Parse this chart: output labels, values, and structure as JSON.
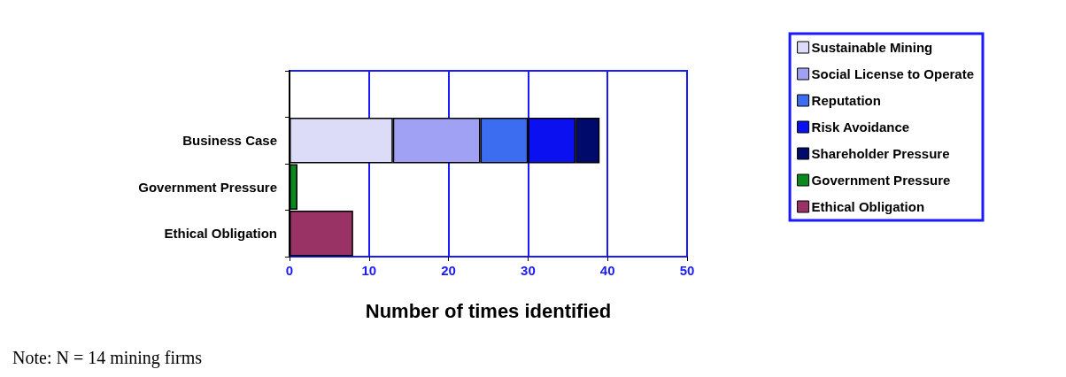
{
  "chart_data": {
    "type": "bar",
    "orientation": "horizontal",
    "stacked": true,
    "categories": [
      null,
      "Business Case",
      "Government Pressure",
      "Ethical Obligation"
    ],
    "series": [
      {
        "name": "Sustainable Mining",
        "color": "#dcdcf8",
        "values": [
          null,
          13,
          null,
          null
        ]
      },
      {
        "name": "Social License to Operate",
        "color": "#a0a0f4",
        "values": [
          null,
          11,
          null,
          null
        ]
      },
      {
        "name": "Reputation",
        "color": "#3c6cf0",
        "values": [
          null,
          6,
          null,
          null
        ]
      },
      {
        "name": "Risk Avoidance",
        "color": "#0a10f0",
        "values": [
          null,
          6,
          null,
          null
        ]
      },
      {
        "name": "Shareholder Pressure",
        "color": "#000a6a",
        "values": [
          null,
          3,
          null,
          null
        ]
      },
      {
        "name": "Government Pressure",
        "color": "#0a8a1e",
        "values": [
          null,
          null,
          1,
          null
        ]
      },
      {
        "name": "Ethical Obligation",
        "color": "#993366",
        "values": [
          null,
          null,
          null,
          8
        ]
      }
    ],
    "xlim": [
      0,
      50
    ],
    "xticks": [
      0,
      10,
      20,
      30,
      40,
      50
    ],
    "xlabel": "Number of times identified",
    "grid": "x",
    "legend": "right",
    "annotations": [
      "Note: N = 14 mining firms"
    ]
  }
}
